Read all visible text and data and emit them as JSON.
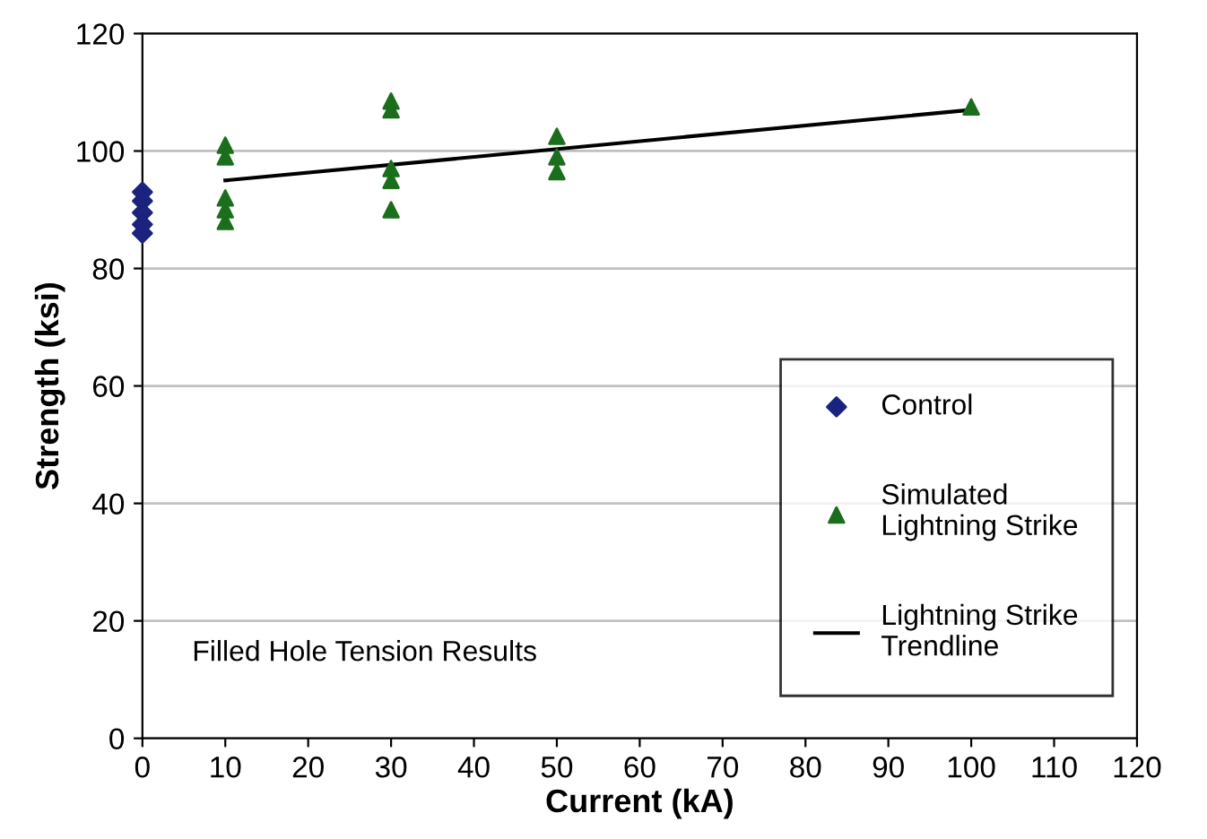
{
  "chart_data": {
    "type": "scatter",
    "xlabel": "Current (kA)",
    "ylabel": "Strength (ksi)",
    "xlim": [
      0,
      120
    ],
    "xticks": [
      0,
      10,
      20,
      30,
      40,
      50,
      60,
      70,
      80,
      90,
      100,
      110,
      120
    ],
    "ylim": [
      0,
      120
    ],
    "yticks": [
      0,
      20,
      40,
      60,
      80,
      100,
      120
    ],
    "grid": "y",
    "legend": "bottom right",
    "annotations": [
      "Filled Hole Tension Results"
    ],
    "series": [
      {
        "name": "Control",
        "color": "#1a237e",
        "marker": "diamond",
        "x": [
          0,
          0,
          0,
          0,
          0
        ],
        "values": [
          93,
          91.5,
          89.5,
          87.5,
          86
        ]
      },
      {
        "name": "Simulated\nLightning Strike",
        "color": "#1b6e1b",
        "marker": "triangle",
        "x": [
          10,
          10,
          10,
          10,
          10,
          30,
          30,
          30,
          30,
          30,
          50,
          50,
          50,
          100
        ],
        "values": [
          101,
          99,
          92,
          90,
          88,
          108.5,
          107,
          97,
          95,
          90,
          102.5,
          99,
          96.5,
          107.5
        ]
      },
      {
        "name": "Lightning Strike\nTrendline",
        "type": "line",
        "color": "#000000",
        "marker": "none",
        "x": [
          10,
          100
        ],
        "values": [
          95,
          107
        ]
      }
    ]
  }
}
